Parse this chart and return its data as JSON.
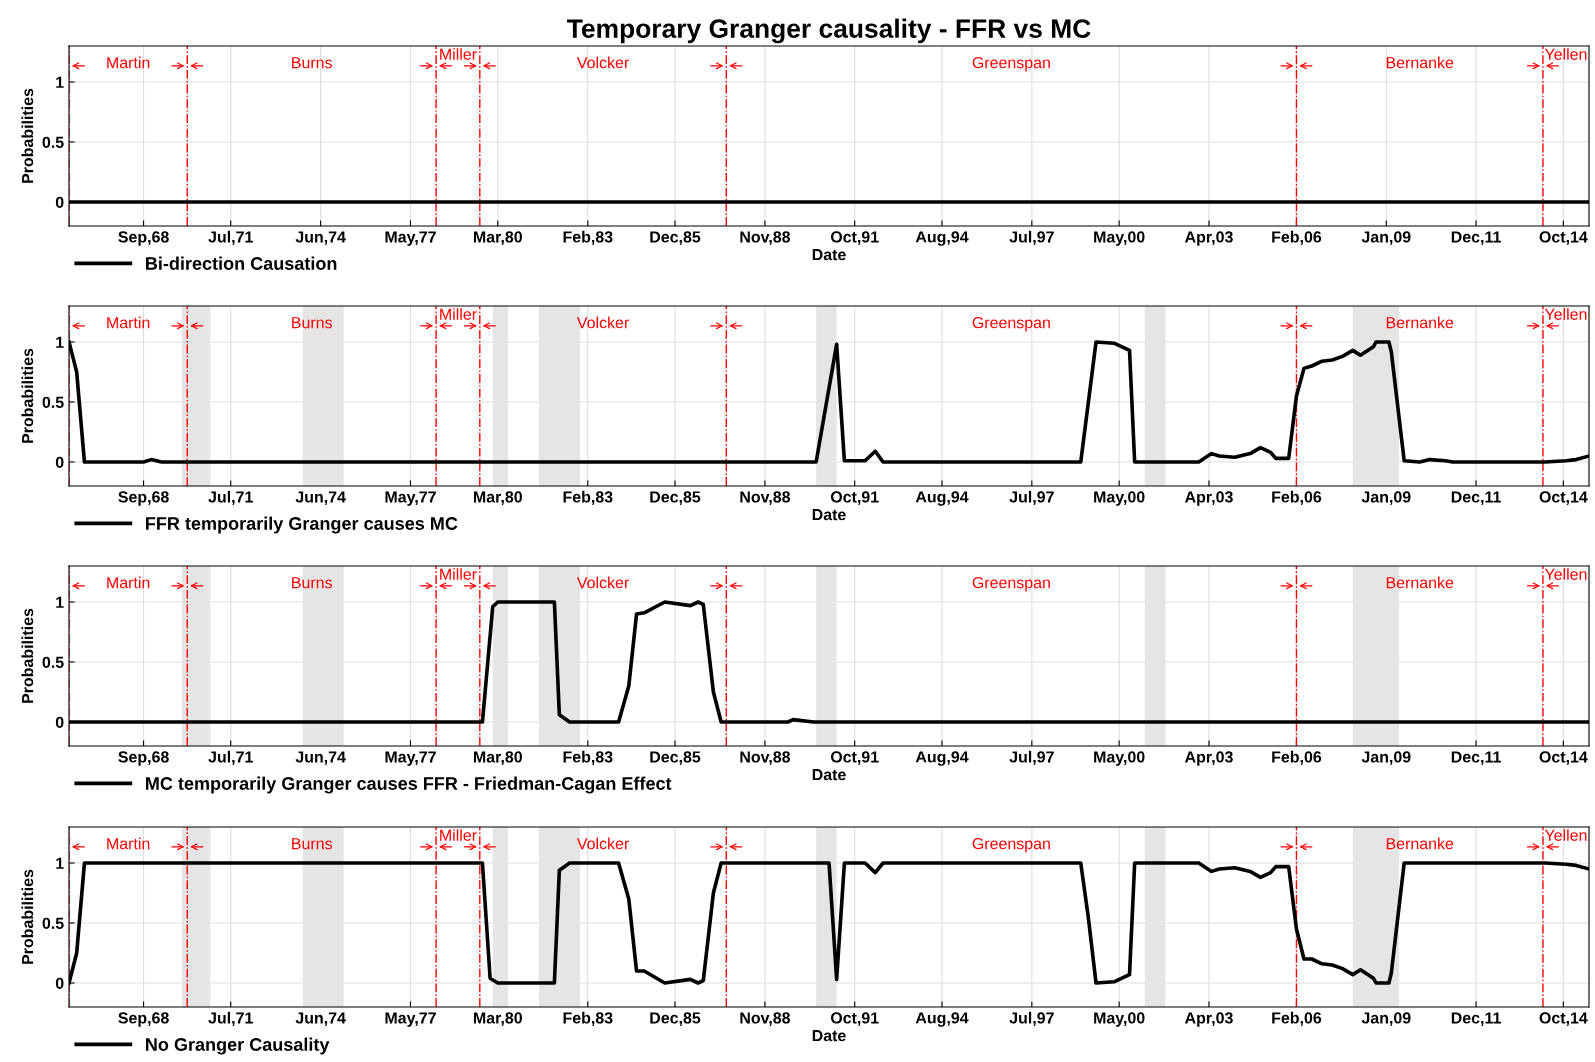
{
  "chart_data": [
    {
      "type": "line",
      "title": "Temporary Granger causality - FFR vs MC",
      "xlabel": "Date",
      "ylabel": "Probabilities",
      "xlim": [
        "1966-04",
        "2015-08"
      ],
      "ylim": [
        -0.2,
        1.3
      ],
      "yticks": [
        0,
        0.5,
        1
      ],
      "xticks": [
        {
          "value": "1968-09",
          "label": "Sep,68"
        },
        {
          "value": "1971-07",
          "label": "Jul,71"
        },
        {
          "value": "1974-06",
          "label": "Jun,74"
        },
        {
          "value": "1977-05",
          "label": "May,77"
        },
        {
          "value": "1980-03",
          "label": "Mar,80"
        },
        {
          "value": "1983-02",
          "label": "Feb,83"
        },
        {
          "value": "1985-12",
          "label": "Dec,85"
        },
        {
          "value": "1988-11",
          "label": "Nov,88"
        },
        {
          "value": "1991-10",
          "label": "Oct,91"
        },
        {
          "value": "1994-08",
          "label": "Aug,94"
        },
        {
          "value": "1997-07",
          "label": "Jul,97"
        },
        {
          "value": "2000-05",
          "label": "May,00"
        },
        {
          "value": "2003-04",
          "label": "Apr,03"
        },
        {
          "value": "2006-02",
          "label": "Feb,06"
        },
        {
          "value": "2009-01",
          "label": "Jan,09"
        },
        {
          "value": "2011-12",
          "label": "Dec,11"
        },
        {
          "value": "2014-10",
          "label": "Oct,14"
        }
      ],
      "grid": true,
      "legend": "bottom left",
      "ref_lines": [
        {
          "axis": "x",
          "value": "1966-04",
          "label": "Martin",
          "color": "#ff0000",
          "line_style": "dashdot"
        },
        {
          "axis": "x",
          "value": "1970-02",
          "label": "Burns",
          "color": "#ff0000",
          "line_style": "dashdot"
        },
        {
          "axis": "x",
          "value": "1978-03",
          "label": "Miller",
          "color": "#ff0000",
          "line_style": "dashdot"
        },
        {
          "axis": "x",
          "value": "1979-08",
          "label": "Volcker",
          "color": "#ff0000",
          "line_style": "dashdot"
        },
        {
          "axis": "x",
          "value": "1987-08",
          "label": "Greenspan",
          "color": "#ff0000",
          "line_style": "dashdot"
        },
        {
          "axis": "x",
          "value": "2006-02",
          "label": "Bernanke",
          "color": "#ff0000",
          "line_style": "dashdot"
        },
        {
          "axis": "x",
          "value": "2014-02",
          "label": "Yellen",
          "color": "#ff0000",
          "line_style": "dashdot"
        }
      ],
      "series": [
        {
          "name": "Bi-direction Causation",
          "color": "#000000",
          "x": [
            "1966-04",
            "2015-08"
          ],
          "values": [
            0,
            0
          ]
        }
      ]
    },
    {
      "type": "line",
      "xlabel": "Date",
      "ylabel": "Probabilities",
      "xlim": [
        "1966-04",
        "2015-08"
      ],
      "ylim": [
        -0.2,
        1.3
      ],
      "yticks": [
        0,
        0.5,
        1
      ],
      "xticks": [
        {
          "value": "1968-09",
          "label": "Sep,68"
        },
        {
          "value": "1971-07",
          "label": "Jul,71"
        },
        {
          "value": "1974-06",
          "label": "Jun,74"
        },
        {
          "value": "1977-05",
          "label": "May,77"
        },
        {
          "value": "1980-03",
          "label": "Mar,80"
        },
        {
          "value": "1983-02",
          "label": "Feb,83"
        },
        {
          "value": "1985-12",
          "label": "Dec,85"
        },
        {
          "value": "1988-11",
          "label": "Nov,88"
        },
        {
          "value": "1991-10",
          "label": "Oct,91"
        },
        {
          "value": "1994-08",
          "label": "Aug,94"
        },
        {
          "value": "1997-07",
          "label": "Jul,97"
        },
        {
          "value": "2000-05",
          "label": "May,00"
        },
        {
          "value": "2003-04",
          "label": "Apr,03"
        },
        {
          "value": "2006-02",
          "label": "Feb,06"
        },
        {
          "value": "2009-01",
          "label": "Jan,09"
        },
        {
          "value": "2011-12",
          "label": "Dec,11"
        },
        {
          "value": "2014-10",
          "label": "Oct,14"
        }
      ],
      "grid": true,
      "legend": "bottom left",
      "bands": [
        {
          "axis": "x",
          "from": "1969-12",
          "to": "1970-11",
          "color": "#e5e5e5"
        },
        {
          "axis": "x",
          "from": "1973-11",
          "to": "1975-03",
          "color": "#e5e5e5"
        },
        {
          "axis": "x",
          "from": "1980-01",
          "to": "1980-07",
          "color": "#e5e5e5"
        },
        {
          "axis": "x",
          "from": "1981-07",
          "to": "1982-11",
          "color": "#e5e5e5"
        },
        {
          "axis": "x",
          "from": "1990-07",
          "to": "1991-03",
          "color": "#e5e5e5"
        },
        {
          "axis": "x",
          "from": "2001-03",
          "to": "2001-11",
          "color": "#e5e5e5"
        },
        {
          "axis": "x",
          "from": "2007-12",
          "to": "2009-06",
          "color": "#e5e5e5"
        }
      ],
      "ref_lines": [
        {
          "axis": "x",
          "value": "1966-04",
          "label": "Martin",
          "color": "#ff0000",
          "line_style": "dashdot"
        },
        {
          "axis": "x",
          "value": "1970-02",
          "label": "Burns",
          "color": "#ff0000",
          "line_style": "dashdot"
        },
        {
          "axis": "x",
          "value": "1978-03",
          "label": "Miller",
          "color": "#ff0000",
          "line_style": "dashdot"
        },
        {
          "axis": "x",
          "value": "1979-08",
          "label": "Volcker",
          "color": "#ff0000",
          "line_style": "dashdot"
        },
        {
          "axis": "x",
          "value": "1987-08",
          "label": "Greenspan",
          "color": "#ff0000",
          "line_style": "dashdot"
        },
        {
          "axis": "x",
          "value": "2006-02",
          "label": "Bernanke",
          "color": "#ff0000",
          "line_style": "dashdot"
        },
        {
          "axis": "x",
          "value": "2014-02",
          "label": "Yellen",
          "color": "#ff0000",
          "line_style": "dashdot"
        }
      ],
      "series": [
        {
          "name": "FFR temporarily Granger causes MC",
          "color": "#000000",
          "x": [
            "1966-04",
            "1966-07",
            "1966-10",
            "1968-09",
            "1968-12",
            "1969-04",
            "1990-07",
            "1991-03",
            "1991-06",
            "1992-02",
            "1992-06",
            "1992-09",
            "1999-02",
            "1999-08",
            "2000-03",
            "2000-09",
            "2000-11",
            "2002-12",
            "2003-05",
            "2003-08",
            "2004-02",
            "2004-08",
            "2004-12",
            "2005-04",
            "2005-06",
            "2005-11",
            "2006-02",
            "2006-05",
            "2006-08",
            "2006-12",
            "2007-04",
            "2007-08",
            "2007-12",
            "2008-03",
            "2008-08",
            "2008-09",
            "2009-02",
            "2009-03",
            "2009-08",
            "2010-02",
            "2010-06",
            "2010-12",
            "2011-03",
            "2014-03",
            "2014-11",
            "2015-03",
            "2015-08"
          ],
          "values": [
            1.0,
            0.75,
            0,
            0,
            0.02,
            0,
            0,
            0.98,
            0.01,
            0.01,
            0.09,
            0,
            0,
            1.0,
            0.99,
            0.93,
            0,
            0,
            0.07,
            0.05,
            0.04,
            0.07,
            0.12,
            0.08,
            0.03,
            0.03,
            0.55,
            0.78,
            0.8,
            0.84,
            0.85,
            0.88,
            0.93,
            0.89,
            0.96,
            1.0,
            1.0,
            0.92,
            0.01,
            0,
            0.02,
            0.01,
            0,
            0,
            0.01,
            0.02,
            0.05
          ]
        }
      ]
    },
    {
      "type": "line",
      "xlabel": "Date",
      "ylabel": "Probabilities",
      "xlim": [
        "1966-04",
        "2015-08"
      ],
      "ylim": [
        -0.2,
        1.3
      ],
      "yticks": [
        0,
        0.5,
        1
      ],
      "xticks": [
        {
          "value": "1968-09",
          "label": "Sep,68"
        },
        {
          "value": "1971-07",
          "label": "Jul,71"
        },
        {
          "value": "1974-06",
          "label": "Jun,74"
        },
        {
          "value": "1977-05",
          "label": "May,77"
        },
        {
          "value": "1980-03",
          "label": "Mar,80"
        },
        {
          "value": "1983-02",
          "label": "Feb,83"
        },
        {
          "value": "1985-12",
          "label": "Dec,85"
        },
        {
          "value": "1988-11",
          "label": "Nov,88"
        },
        {
          "value": "1991-10",
          "label": "Oct,91"
        },
        {
          "value": "1994-08",
          "label": "Aug,94"
        },
        {
          "value": "1997-07",
          "label": "Jul,97"
        },
        {
          "value": "2000-05",
          "label": "May,00"
        },
        {
          "value": "2003-04",
          "label": "Apr,03"
        },
        {
          "value": "2006-02",
          "label": "Feb,06"
        },
        {
          "value": "2009-01",
          "label": "Jan,09"
        },
        {
          "value": "2011-12",
          "label": "Dec,11"
        },
        {
          "value": "2014-10",
          "label": "Oct,14"
        }
      ],
      "grid": true,
      "legend": "bottom left",
      "bands": [
        {
          "axis": "x",
          "from": "1969-12",
          "to": "1970-11",
          "color": "#e5e5e5"
        },
        {
          "axis": "x",
          "from": "1973-11",
          "to": "1975-03",
          "color": "#e5e5e5"
        },
        {
          "axis": "x",
          "from": "1980-01",
          "to": "1980-07",
          "color": "#e5e5e5"
        },
        {
          "axis": "x",
          "from": "1981-07",
          "to": "1982-11",
          "color": "#e5e5e5"
        },
        {
          "axis": "x",
          "from": "1990-07",
          "to": "1991-03",
          "color": "#e5e5e5"
        },
        {
          "axis": "x",
          "from": "2001-03",
          "to": "2001-11",
          "color": "#e5e5e5"
        },
        {
          "axis": "x",
          "from": "2007-12",
          "to": "2009-06",
          "color": "#e5e5e5"
        }
      ],
      "ref_lines": [
        {
          "axis": "x",
          "value": "1966-04",
          "label": "Martin",
          "color": "#ff0000",
          "line_style": "dashdot"
        },
        {
          "axis": "x",
          "value": "1970-02",
          "label": "Burns",
          "color": "#ff0000",
          "line_style": "dashdot"
        },
        {
          "axis": "x",
          "value": "1978-03",
          "label": "Miller",
          "color": "#ff0000",
          "line_style": "dashdot"
        },
        {
          "axis": "x",
          "value": "1979-08",
          "label": "Volcker",
          "color": "#ff0000",
          "line_style": "dashdot"
        },
        {
          "axis": "x",
          "value": "1987-08",
          "label": "Greenspan",
          "color": "#ff0000",
          "line_style": "dashdot"
        },
        {
          "axis": "x",
          "value": "2006-02",
          "label": "Bernanke",
          "color": "#ff0000",
          "line_style": "dashdot"
        },
        {
          "axis": "x",
          "value": "2014-02",
          "label": "Yellen",
          "color": "#ff0000",
          "line_style": "dashdot"
        }
      ],
      "series": [
        {
          "name": "MC temporarily Granger causes FFR - Friedman-Cagan Effect",
          "color": "#000000",
          "x": [
            "1966-04",
            "1979-06",
            "1979-09",
            "1980-01",
            "1980-03",
            "1982-01",
            "1982-03",
            "1982-07",
            "1984-02",
            "1984-06",
            "1984-09",
            "1984-12",
            "1985-08",
            "1986-06",
            "1986-09",
            "1986-11",
            "1987-03",
            "1987-06",
            "1989-08",
            "1989-10",
            "1990-06",
            "2015-08"
          ],
          "values": [
            0,
            0,
            0,
            0.96,
            1.0,
            1.0,
            0.06,
            0,
            0,
            0.3,
            0.9,
            0.91,
            1.0,
            0.97,
            1.0,
            0.98,
            0.25,
            0,
            0,
            0.02,
            0,
            0
          ]
        }
      ]
    },
    {
      "type": "line",
      "xlabel": "Date",
      "ylabel": "Probabilities",
      "xlim": [
        "1966-04",
        "2015-08"
      ],
      "ylim": [
        -0.2,
        1.3
      ],
      "yticks": [
        0,
        0.5,
        1
      ],
      "xticks": [
        {
          "value": "1968-09",
          "label": "Sep,68"
        },
        {
          "value": "1971-07",
          "label": "Jul,71"
        },
        {
          "value": "1974-06",
          "label": "Jun,74"
        },
        {
          "value": "1977-05",
          "label": "May,77"
        },
        {
          "value": "1980-03",
          "label": "Mar,80"
        },
        {
          "value": "1983-02",
          "label": "Feb,83"
        },
        {
          "value": "1985-12",
          "label": "Dec,85"
        },
        {
          "value": "1988-11",
          "label": "Nov,88"
        },
        {
          "value": "1991-10",
          "label": "Oct,91"
        },
        {
          "value": "1994-08",
          "label": "Aug,94"
        },
        {
          "value": "1997-07",
          "label": "Jul,97"
        },
        {
          "value": "2000-05",
          "label": "May,00"
        },
        {
          "value": "2003-04",
          "label": "Apr,03"
        },
        {
          "value": "2006-02",
          "label": "Feb,06"
        },
        {
          "value": "2009-01",
          "label": "Jan,09"
        },
        {
          "value": "2011-12",
          "label": "Dec,11"
        },
        {
          "value": "2014-10",
          "label": "Oct,14"
        }
      ],
      "grid": true,
      "legend": "bottom left",
      "bands": [
        {
          "axis": "x",
          "from": "1969-12",
          "to": "1970-11",
          "color": "#e5e5e5"
        },
        {
          "axis": "x",
          "from": "1973-11",
          "to": "1975-03",
          "color": "#e5e5e5"
        },
        {
          "axis": "x",
          "from": "1980-01",
          "to": "1980-07",
          "color": "#e5e5e5"
        },
        {
          "axis": "x",
          "from": "1981-07",
          "to": "1982-11",
          "color": "#e5e5e5"
        },
        {
          "axis": "x",
          "from": "1990-07",
          "to": "1991-03",
          "color": "#e5e5e5"
        },
        {
          "axis": "x",
          "from": "2001-03",
          "to": "2001-11",
          "color": "#e5e5e5"
        },
        {
          "axis": "x",
          "from": "2007-12",
          "to": "2009-06",
          "color": "#e5e5e5"
        }
      ],
      "ref_lines": [
        {
          "axis": "x",
          "value": "1966-04",
          "label": "Martin",
          "color": "#ff0000",
          "line_style": "dashdot"
        },
        {
          "axis": "x",
          "value": "1970-02",
          "label": "Burns",
          "color": "#ff0000",
          "line_style": "dashdot"
        },
        {
          "axis": "x",
          "value": "1978-03",
          "label": "Miller",
          "color": "#ff0000",
          "line_style": "dashdot"
        },
        {
          "axis": "x",
          "value": "1979-08",
          "label": "Volcker",
          "color": "#ff0000",
          "line_style": "dashdot"
        },
        {
          "axis": "x",
          "value": "1987-08",
          "label": "Greenspan",
          "color": "#ff0000",
          "line_style": "dashdot"
        },
        {
          "axis": "x",
          "value": "2006-02",
          "label": "Bernanke",
          "color": "#ff0000",
          "line_style": "dashdot"
        },
        {
          "axis": "x",
          "value": "2014-02",
          "label": "Yellen",
          "color": "#ff0000",
          "line_style": "dashdot"
        }
      ],
      "series": [
        {
          "name": "No Granger Causality",
          "color": "#000000",
          "x": [
            "1966-04",
            "1966-07",
            "1966-10",
            "1979-09",
            "1979-12",
            "1980-03",
            "1982-01",
            "1982-03",
            "1982-07",
            "1984-02",
            "1984-06",
            "1984-09",
            "1984-12",
            "1985-08",
            "1986-06",
            "1986-09",
            "1986-11",
            "1987-03",
            "1987-06",
            "1990-12",
            "1991-03",
            "1991-06",
            "1992-02",
            "1992-06",
            "1992-09",
            "1999-02",
            "1999-05",
            "1999-08",
            "2000-03",
            "2000-09",
            "2000-11",
            "2002-12",
            "2003-05",
            "2003-08",
            "2004-02",
            "2004-08",
            "2004-12",
            "2005-04",
            "2005-06",
            "2005-11",
            "2006-02",
            "2006-05",
            "2006-08",
            "2006-12",
            "2007-04",
            "2007-08",
            "2007-12",
            "2008-03",
            "2008-08",
            "2008-09",
            "2009-02",
            "2009-03",
            "2009-08",
            "2014-03",
            "2014-11",
            "2015-03",
            "2015-08"
          ],
          "values": [
            0,
            0.25,
            1.0,
            1.0,
            0.04,
            0,
            0,
            0.94,
            1.0,
            1.0,
            0.7,
            0.1,
            0.1,
            0,
            0.03,
            0,
            0.02,
            0.75,
            1.0,
            1.0,
            0.03,
            1.0,
            1.0,
            0.92,
            1.0,
            1.0,
            0.55,
            0,
            0.01,
            0.07,
            1.0,
            1.0,
            0.93,
            0.95,
            0.96,
            0.93,
            0.88,
            0.92,
            0.97,
            0.97,
            0.45,
            0.2,
            0.2,
            0.16,
            0.15,
            0.12,
            0.07,
            0.11,
            0.04,
            0,
            0,
            0.08,
            1.0,
            1.0,
            0.99,
            0.98,
            0.95
          ]
        }
      ]
    }
  ]
}
